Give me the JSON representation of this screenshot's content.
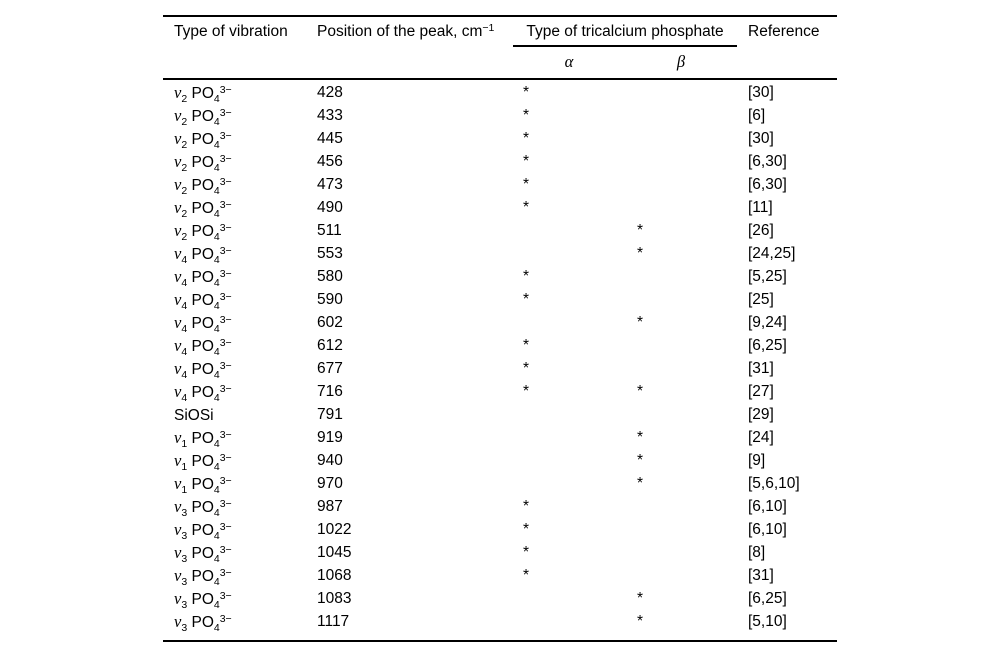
{
  "table": {
    "headers": {
      "vibration": "Type of vibration",
      "position": "Position of the peak, cm",
      "position_sup": "−1",
      "group": "Type of tricalcium phosphate",
      "alpha": "α",
      "beta": "β",
      "reference": "Reference"
    },
    "rows": [
      {
        "vib_greek": "ν",
        "vib_sub": "2",
        "vib_formula": " PO",
        "vib_fsub": "4",
        "vib_fsup": "3−",
        "pos": "428",
        "alpha": "*",
        "beta": "",
        "ref": "[30]"
      },
      {
        "vib_greek": "ν",
        "vib_sub": "2",
        "vib_formula": " PO",
        "vib_fsub": "4",
        "vib_fsup": "3−",
        "pos": "433",
        "alpha": "*",
        "beta": "",
        "ref": "[6]"
      },
      {
        "vib_greek": "ν",
        "vib_sub": "2",
        "vib_formula": " PO",
        "vib_fsub": "4",
        "vib_fsup": "3−",
        "pos": "445",
        "alpha": "*",
        "beta": "",
        "ref": "[30]"
      },
      {
        "vib_greek": "ν",
        "vib_sub": "2",
        "vib_formula": " PO",
        "vib_fsub": "4",
        "vib_fsup": "3−",
        "pos": "456",
        "alpha": "*",
        "beta": "",
        "ref": "[6,30]"
      },
      {
        "vib_greek": "ν",
        "vib_sub": "2",
        "vib_formula": " PO",
        "vib_fsub": "4",
        "vib_fsup": "3−",
        "pos": "473",
        "alpha": "*",
        "beta": "",
        "ref": "[6,30]"
      },
      {
        "vib_greek": "ν",
        "vib_sub": "2",
        "vib_formula": " PO",
        "vib_fsub": "4",
        "vib_fsup": "3−",
        "pos": "490",
        "alpha": "*",
        "beta": "",
        "ref": "[11]"
      },
      {
        "vib_greek": "ν",
        "vib_sub": "2",
        "vib_formula": " PO",
        "vib_fsub": "4",
        "vib_fsup": "3−",
        "pos": "511",
        "alpha": "",
        "beta": "*",
        "ref": "[26]"
      },
      {
        "vib_greek": "ν",
        "vib_sub": "4",
        "vib_formula": " PO",
        "vib_fsub": "4",
        "vib_fsup": "3−",
        "pos": "553",
        "alpha": "",
        "beta": "*",
        "ref": "[24,25]"
      },
      {
        "vib_greek": "ν",
        "vib_sub": "4",
        "vib_formula": " PO",
        "vib_fsub": "4",
        "vib_fsup": "3−",
        "pos": "580",
        "alpha": "*",
        "beta": "",
        "ref": "[5,25]"
      },
      {
        "vib_greek": "ν",
        "vib_sub": "4",
        "vib_formula": " PO",
        "vib_fsub": "4",
        "vib_fsup": "3−",
        "pos": "590",
        "alpha": "*",
        "beta": "",
        "ref": "[25]"
      },
      {
        "vib_greek": "ν",
        "vib_sub": "4",
        "vib_formula": " PO",
        "vib_fsub": "4",
        "vib_fsup": "3−",
        "pos": "602",
        "alpha": "",
        "beta": "*",
        "ref": "[9,24]"
      },
      {
        "vib_greek": "ν",
        "vib_sub": "4",
        "vib_formula": " PO",
        "vib_fsub": "4",
        "vib_fsup": "3−",
        "pos": "612",
        "alpha": "*",
        "beta": "",
        "ref": "[6,25]"
      },
      {
        "vib_greek": "ν",
        "vib_sub": "4",
        "vib_formula": " PO",
        "vib_fsub": "4",
        "vib_fsup": "3−",
        "pos": "677",
        "alpha": "*",
        "beta": "",
        "ref": "[31]"
      },
      {
        "vib_greek": "ν",
        "vib_sub": "4",
        "vib_formula": " PO",
        "vib_fsub": "4",
        "vib_fsup": "3−",
        "pos": "716",
        "alpha": "*",
        "beta": "*",
        "ref": "[27]"
      },
      {
        "vib_greek": "",
        "vib_sub": "",
        "vib_formula": "SiOSi",
        "vib_fsub": "",
        "vib_fsup": "",
        "pos": "791",
        "alpha": "",
        "beta": "",
        "ref": "[29]"
      },
      {
        "vib_greek": "ν",
        "vib_sub": "1",
        "vib_formula": " PO",
        "vib_fsub": "4",
        "vib_fsup": "3−",
        "pos": "919",
        "alpha": "",
        "beta": "*",
        "ref": "[24]"
      },
      {
        "vib_greek": "ν",
        "vib_sub": "1",
        "vib_formula": " PO",
        "vib_fsub": "4",
        "vib_fsup": "3−",
        "pos": "940",
        "alpha": "",
        "beta": "*",
        "ref": "[9]"
      },
      {
        "vib_greek": "ν",
        "vib_sub": "1",
        "vib_formula": " PO",
        "vib_fsub": "4",
        "vib_fsup": "3−",
        "pos": "970",
        "alpha": "",
        "beta": "*",
        "ref": "[5,6,10]"
      },
      {
        "vib_greek": "ν",
        "vib_sub": "3",
        "vib_formula": " PO",
        "vib_fsub": "4",
        "vib_fsup": "3−",
        "pos": "987",
        "alpha": "*",
        "beta": "",
        "ref": "[6,10]"
      },
      {
        "vib_greek": "ν",
        "vib_sub": "3",
        "vib_formula": " PO",
        "vib_fsub": "4",
        "vib_fsup": "3−",
        "pos": "1022",
        "alpha": "*",
        "beta": "",
        "ref": "[6,10]"
      },
      {
        "vib_greek": "ν",
        "vib_sub": "3",
        "vib_formula": " PO",
        "vib_fsub": "4",
        "vib_fsup": "3−",
        "pos": "1045",
        "alpha": "*",
        "beta": "",
        "ref": "[8]"
      },
      {
        "vib_greek": "ν",
        "vib_sub": "3",
        "vib_formula": " PO",
        "vib_fsub": "4",
        "vib_fsup": "3−",
        "pos": "1068",
        "alpha": "*",
        "beta": "",
        "ref": "[31]"
      },
      {
        "vib_greek": "ν",
        "vib_sub": "3",
        "vib_formula": " PO",
        "vib_fsub": "4",
        "vib_fsup": "3−",
        "pos": "1083",
        "alpha": "",
        "beta": "*",
        "ref": "[6,25]"
      },
      {
        "vib_greek": "ν",
        "vib_sub": "3",
        "vib_formula": " PO",
        "vib_fsub": "4",
        "vib_fsup": "3−",
        "pos": "1117",
        "alpha": "",
        "beta": "*",
        "ref": "[5,10]"
      }
    ]
  }
}
